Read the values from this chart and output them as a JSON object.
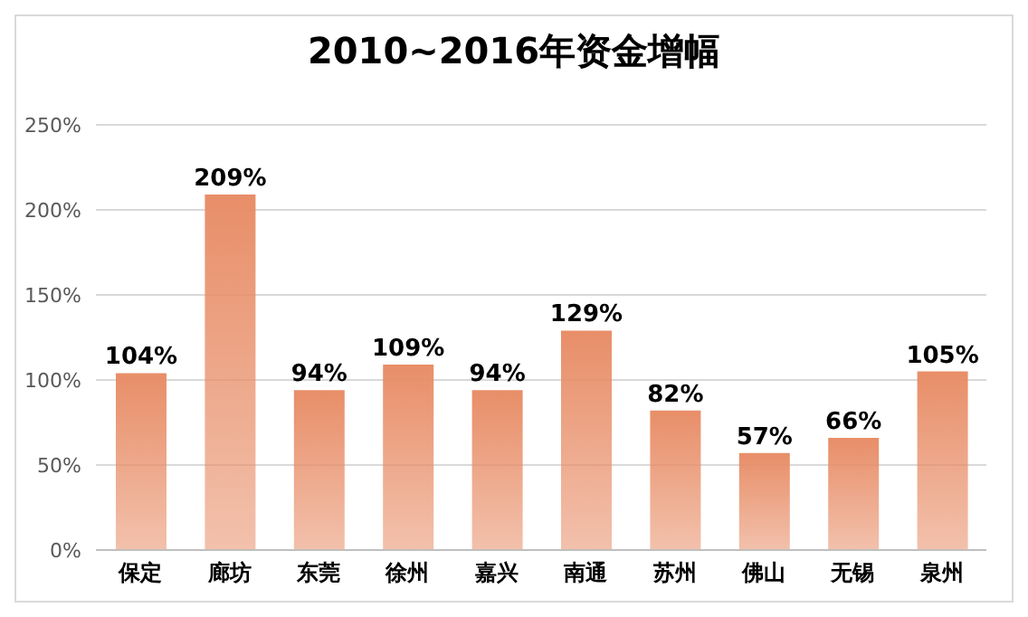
{
  "chart_data": {
    "type": "bar",
    "title": "2010~2016年资金增幅",
    "categories": [
      "保定",
      "廊坊",
      "东莞",
      "徐州",
      "嘉兴",
      "南通",
      "苏州",
      "佛山",
      "无锡",
      "泉州"
    ],
    "values": [
      104,
      209,
      94,
      109,
      94,
      129,
      82,
      57,
      66,
      105
    ],
    "value_labels": [
      "104%",
      "209%",
      "94%",
      "109%",
      "94%",
      "129%",
      "82%",
      "57%",
      "66%",
      "105%"
    ],
    "color": "#e88e68",
    "ylim": [
      0,
      250
    ],
    "yticks": [
      {
        "value": 0,
        "label": "0%"
      },
      {
        "value": 50,
        "label": "50%"
      },
      {
        "value": 100,
        "label": "100%"
      },
      {
        "value": 150,
        "label": "150%"
      },
      {
        "value": 200,
        "label": "200%"
      },
      {
        "value": 250,
        "label": "250%"
      }
    ],
    "grid": "y"
  }
}
